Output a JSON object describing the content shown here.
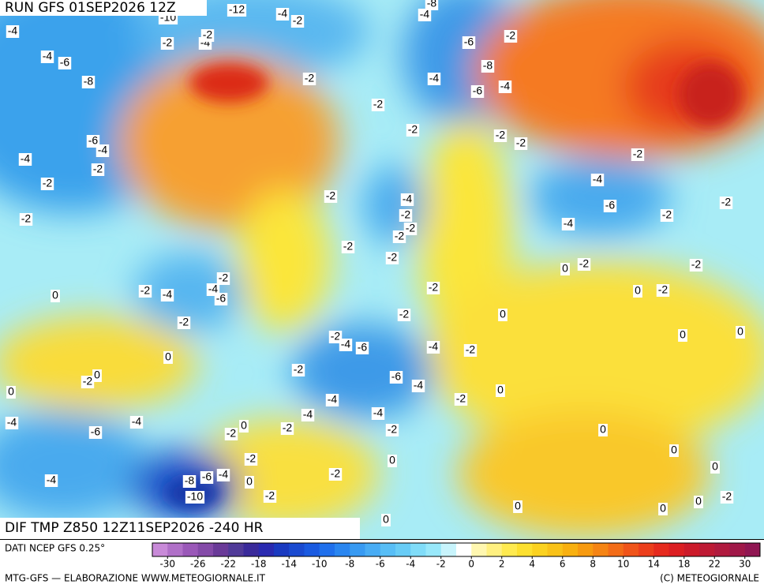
{
  "header": {
    "run": "RUN GFS 01SEP2026 12Z",
    "field": "DIF TMP Z850 12Z11SEP2026 -240 HR"
  },
  "map": {
    "labels": [
      -4,
      -10,
      -12,
      -4,
      -2,
      -8,
      -4,
      -2,
      -4,
      -2,
      -4,
      -6,
      -8,
      -2,
      -4,
      -6,
      -2,
      -8,
      -4,
      -6,
      -2,
      -2,
      -2,
      -2,
      -6,
      -4,
      -4,
      -2,
      -2,
      -2,
      -4,
      -6,
      -2,
      -4,
      -2,
      -2,
      -2,
      -2,
      -2,
      -4,
      -2,
      -2,
      -2,
      0,
      -2,
      -2,
      -2,
      -4,
      -2,
      -4,
      -6,
      0,
      -2,
      -2,
      0,
      -2,
      0,
      -2,
      0,
      0,
      -2,
      -4,
      -6,
      -4,
      -2,
      0,
      -2,
      -2,
      0,
      -6,
      -4,
      0,
      0,
      -4,
      -2,
      -4,
      -4,
      -4,
      -4,
      -2,
      -2,
      -6,
      -2,
      0,
      0,
      -2,
      0,
      0,
      -2,
      -4,
      -8,
      -6,
      -4,
      0,
      0,
      -10,
      -2,
      -2,
      0,
      0,
      0,
      0
    ]
  },
  "legend": {
    "source": "DATI NCEP GFS 0.25°",
    "ticks": [
      -30,
      -26,
      -22,
      -18,
      -14,
      -10,
      -8,
      -6,
      -4,
      -2,
      0,
      2,
      4,
      6,
      8,
      10,
      14,
      18,
      22,
      30
    ]
  },
  "footer": {
    "left": "MTG-GFS — ELABORAZIONE WWW.METEOGIORNALE.IT",
    "right": "(C) METEOGIORNALE"
  }
}
